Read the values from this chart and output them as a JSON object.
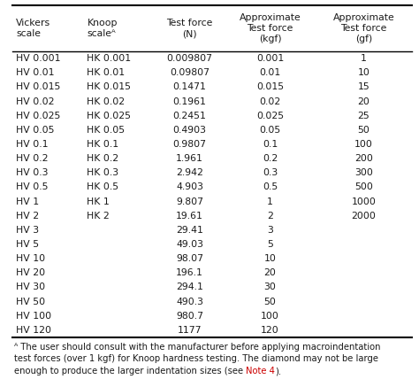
{
  "col_headers": [
    "Vickers\nscale",
    "Knoop\nscaleᴬ",
    "Test force\n(N)",
    "Approximate\nTest force\n(kgf)",
    "Approximate\nTest force\n(gf)"
  ],
  "rows": [
    [
      "HV 0.001",
      "HK 0.001",
      "0.009807",
      "0.001",
      "1"
    ],
    [
      "HV 0.01",
      "HK 0.01",
      "0.09807",
      "0.01",
      "10"
    ],
    [
      "HV 0.015",
      "HK 0.015",
      "0.1471",
      "0.015",
      "15"
    ],
    [
      "HV 0.02",
      "HK 0.02",
      "0.1961",
      "0.02",
      "20"
    ],
    [
      "HV 0.025",
      "HK 0.025",
      "0.2451",
      "0.025",
      "25"
    ],
    [
      "HV 0.05",
      "HK 0.05",
      "0.4903",
      "0.05",
      "50"
    ],
    [
      "HV 0.1",
      "HK 0.1",
      "0.9807",
      "0.1",
      "100"
    ],
    [
      "HV 0.2",
      "HK 0.2",
      "1.961",
      "0.2",
      "200"
    ],
    [
      "HV 0.3",
      "HK 0.3",
      "2.942",
      "0.3",
      "300"
    ],
    [
      "HV 0.5",
      "HK 0.5",
      "4.903",
      "0.5",
      "500"
    ],
    [
      "HV 1",
      "HK 1",
      "9.807",
      "1",
      "1000"
    ],
    [
      "HV 2",
      "HK 2",
      "19.61",
      "2",
      "2000"
    ],
    [
      "HV 3",
      "",
      "29.41",
      "3",
      ""
    ],
    [
      "HV 5",
      "",
      "49.03",
      "5",
      ""
    ],
    [
      "HV 10",
      "",
      "98.07",
      "10",
      ""
    ],
    [
      "HV 20",
      "",
      "196.1",
      "20",
      ""
    ],
    [
      "HV 30",
      "",
      "294.1",
      "30",
      ""
    ],
    [
      "HV 50",
      "",
      "490.3",
      "50",
      ""
    ],
    [
      "HV 100",
      "",
      "980.7",
      "100",
      ""
    ],
    [
      "HV 120",
      "",
      "1177",
      "120",
      ""
    ]
  ],
  "footnote_before": "ᴬ The user should consult with the manufacturer before applying macroindentation\ntest forces (over 1 kgf) for Knoop hardness testing. The diamond may not be large\nenough to produce the larger indentation sizes (see ",
  "footnote_note4": "Note 4",
  "footnote_after": ").",
  "note4_color": "#cc0000",
  "col_aligns": [
    "left",
    "left",
    "center",
    "center",
    "center"
  ],
  "bg_color": "#ffffff",
  "text_color": "#1a1a1a",
  "header_fontsize": 7.8,
  "cell_fontsize": 7.8,
  "footnote_fontsize": 7.2,
  "figwidth": 4.74,
  "figheight": 4.37,
  "dpi": 100
}
